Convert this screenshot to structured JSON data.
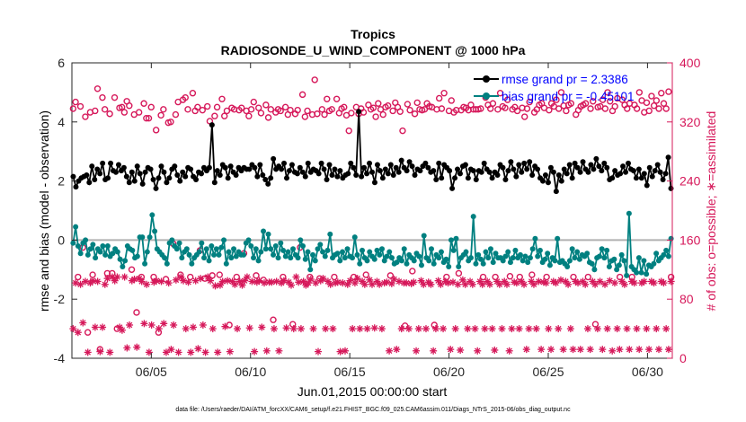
{
  "chart_data": {
    "type": "line",
    "title": "Tropics",
    "subtitle": "RADIOSONDE_U_WIND_COMPONENT @ 1000 hPa",
    "xlabel": "Jun.01,2015 00:00:00 start",
    "ylabel_left": "rmse and bias (model - observation)",
    "ylabel_right": "# of obs: o=possible; ∗=assimilated",
    "footer": "data file: /Users/raeder/DAI/ATM_forcXX/CAM6_setup/f.e21.FHIST_BGC.f09_025.CAM6assim.011/Diags_NTrS_2015-06/obs_diag_output.nc",
    "xlim": [
      1.0,
      31.25
    ],
    "ylim_left": [
      -4,
      6
    ],
    "ylim_right": [
      0,
      400
    ],
    "x_ticks": [
      5,
      10,
      15,
      20,
      25,
      30
    ],
    "x_tick_labels": [
      "06/05",
      "06/10",
      "06/15",
      "06/20",
      "06/25",
      "06/30"
    ],
    "y_left_ticks": [
      -4,
      -2,
      0,
      2,
      4,
      6
    ],
    "y_left_tick_labels": [
      "-4",
      "-2",
      "0",
      "2",
      "4",
      "6"
    ],
    "y_right_ticks": [
      0,
      80,
      160,
      240,
      320,
      400
    ],
    "y_right_tick_labels": [
      "0",
      "80",
      "160",
      "240",
      "320",
      "400"
    ],
    "legend": [
      {
        "label": "rmse grand pr = 2.3386",
        "color": "#000000"
      },
      {
        "label": "bias grand pr = -0.45101",
        "color": "#008080"
      }
    ],
    "colors": {
      "rmse": "#000000",
      "bias": "#008080",
      "obs": "#d6185a",
      "zero_line": "#b0b0b0",
      "right_axis": "#d6185a"
    },
    "series": [
      {
        "name": "rmse",
        "axis": "left",
        "style": "line-dots",
        "values": [
          2.15,
          1.8,
          2.0,
          2.1,
          2.15,
          2.2,
          1.95,
          2.5,
          2.05,
          2.4,
          2.25,
          2.6,
          2.05,
          2.1,
          2.6,
          2.35,
          2.3,
          2.55,
          2.35,
          2.45,
          2.15,
          1.95,
          2.3,
          2.0,
          2.5,
          2.25,
          1.9,
          2.3,
          2.45,
          2.4,
          2.05,
          1.75,
          2.1,
          2.5,
          2.3,
          1.95,
          2.1,
          2.4,
          2.5,
          2.2,
          2.0,
          2.3,
          2.15,
          2.45,
          2.4,
          2.15,
          2.05,
          2.3,
          2.25,
          2.45,
          2.35,
          2.45,
          3.9,
          1.95,
          2.35,
          2.2,
          2.55,
          2.45,
          2.1,
          2.5,
          2.3,
          2.2,
          2.45,
          2.35,
          2.45,
          2.4,
          2.4,
          2.55,
          2.45,
          2.15,
          2.55,
          2.2,
          2.05,
          1.9,
          2.1,
          2.75,
          2.4,
          2.5,
          2.4,
          2.6,
          2.1,
          2.35,
          2.55,
          2.3,
          2.25,
          2.45,
          2.3,
          2.15,
          2.6,
          2.3,
          2.4,
          2.35,
          2.25,
          2.6,
          2.4,
          2.05,
          2.55,
          2.2,
          2.4,
          2.15,
          2.35,
          2.1,
          2.2,
          2.25,
          2.6,
          2.45,
          2.2,
          4.35,
          2.15,
          2.45,
          2.25,
          2.6,
          2.3,
          1.95,
          2.55,
          2.35,
          2.1,
          2.4,
          2.25,
          2.55,
          2.2,
          2.45,
          2.3,
          2.7,
          2.45,
          2.35,
          2.65,
          2.5,
          2.2,
          2.4,
          2.35,
          2.5,
          2.6,
          2.45,
          2.3,
          2.35,
          2.05,
          2.6,
          2.1,
          2.55,
          2.45,
          2.35,
          1.75,
          2.1,
          2.4,
          2.25,
          2.5,
          2.55,
          2.1,
          2.4,
          2.35,
          2.05,
          2.35,
          2.3,
          2.6,
          2.4,
          2.3,
          2.1,
          2.3,
          2.2,
          2.55,
          2.45,
          2.05,
          2.35,
          2.65,
          2.4,
          2.15,
          2.55,
          2.3,
          2.6,
          2.4,
          2.65,
          2.2,
          2.5,
          2.4,
          2.1,
          2.0,
          2.2,
          1.95,
          2.45,
          2.3,
          1.65,
          2.2,
          2.0,
          2.4,
          2.25,
          2.55,
          2.1,
          2.6,
          2.45,
          2.3,
          2.65,
          2.4,
          2.3,
          2.55,
          2.4,
          2.75,
          2.5,
          2.35,
          2.6,
          2.45,
          2.05,
          2.1,
          2.35,
          2.2,
          2.25,
          2.5,
          2.3,
          2.6,
          2.4,
          2.35,
          2.1,
          2.4,
          2.1,
          2.25,
          1.85,
          2.45,
          2.15,
          2.35,
          2.55,
          2.3,
          2.05,
          2.25,
          2.8,
          1.75
        ]
      },
      {
        "name": "bias",
        "axis": "left",
        "style": "line-dots",
        "values": [
          -0.1,
          0.45,
          -0.2,
          -0.45,
          -0.1,
          0.0,
          -0.5,
          -0.3,
          -0.15,
          -0.6,
          -0.3,
          -0.4,
          -0.2,
          -0.5,
          -0.2,
          -0.55,
          -0.45,
          -0.3,
          -0.4,
          -0.65,
          -0.9,
          -0.7,
          -0.2,
          -0.3,
          -0.35,
          -0.6,
          -0.55,
          0.1,
          0.1,
          -0.8,
          -0.4,
          0.1,
          0.85,
          0.3,
          -0.3,
          -0.4,
          -0.5,
          -0.6,
          -0.8,
          -0.1,
          0.0,
          -0.2,
          -0.3,
          -0.1,
          -0.6,
          -0.4,
          -0.3,
          -0.5,
          -0.8,
          -0.6,
          -0.5,
          -0.4,
          -0.1,
          -0.6,
          -0.3,
          -0.7,
          -0.2,
          -0.5,
          -0.3,
          -0.5,
          -0.25,
          0.0,
          -0.8,
          -0.4,
          -0.6,
          -0.3,
          -0.55,
          -0.4,
          -0.5,
          -0.5,
          -0.1,
          0.0,
          -0.2,
          -0.6,
          -0.3,
          -0.7,
          -0.4,
          0.3,
          -0.3,
          0.2,
          -0.3,
          -0.5,
          -0.2,
          -0.6,
          -0.1,
          -0.35,
          -0.55,
          -0.4,
          -0.6,
          -0.3,
          -0.5,
          -0.6,
          0.0,
          -0.2,
          -0.65,
          -0.4,
          -1.0,
          -0.5,
          -0.7,
          -0.3,
          -0.15,
          -0.4,
          -0.55,
          -0.35,
          0.2,
          -0.6,
          -0.5,
          -0.45,
          -0.7,
          -0.4,
          -0.6,
          -0.3,
          -0.55,
          -0.6,
          0.1,
          -0.5,
          -0.8,
          -0.35,
          -0.6,
          -0.7,
          -0.4,
          -0.55,
          -0.65,
          -0.35,
          -0.5,
          -0.3,
          -0.7,
          -0.55,
          -0.4,
          -0.6,
          -0.8,
          -0.75,
          -0.6,
          -0.7,
          -0.3,
          -0.8,
          -0.5,
          -0.6,
          -0.7,
          -0.45,
          -0.55,
          -0.85,
          0.15,
          -0.6,
          -0.7,
          -0.3,
          -0.8,
          -0.5,
          -0.6,
          -0.4,
          -0.75,
          -0.65,
          -0.9,
          0.0,
          -0.35,
          0.05,
          -0.9,
          -0.6,
          -0.5,
          -0.4,
          -0.7,
          -0.6,
          0.8,
          -0.8,
          -0.5,
          -0.65,
          -0.8,
          -0.4,
          -0.6,
          -0.3,
          -0.75,
          -0.45,
          -0.6,
          -0.6,
          -0.7,
          -0.55,
          -0.4,
          -0.75,
          -0.6,
          -0.35,
          -0.6,
          -0.5,
          -0.7,
          -0.55,
          -0.75,
          -0.6,
          -0.3,
          0.05,
          -0.55,
          -0.35,
          -0.75,
          -0.65,
          -0.45,
          -0.85,
          -0.6,
          -0.7,
          0.05,
          -0.75,
          -0.7,
          -0.8,
          -0.9,
          -0.7,
          -0.3,
          -0.6,
          -0.4,
          -0.65,
          -0.5,
          -0.55,
          -0.45,
          -0.75,
          -0.8,
          -1.0,
          -0.6,
          -0.55,
          -0.3,
          -0.6,
          -0.35,
          -0.9,
          -0.7,
          -0.65,
          -1.0,
          -0.85,
          -0.5,
          -0.7,
          -1.2,
          0.9,
          -0.9,
          -1.0,
          -1.1,
          -0.6,
          -1.1,
          -0.7,
          -1.15,
          -0.85,
          -0.9,
          -0.8,
          -0.45,
          -0.7,
          -0.6,
          -0.5,
          -0.35,
          -0.55,
          0.05
        ]
      },
      {
        "name": "possible",
        "axis": "right",
        "style": "open-circle",
        "values": [
          338,
          347,
          110,
          341,
          150,
          327,
          35,
          333,
          113,
          335,
          365,
          12,
          353,
          337,
          115,
          331,
          115,
          353,
          40,
          339,
          340,
          333,
          348,
          342,
          120,
          330,
          62,
          333,
          110,
          345,
          325,
          325,
          340,
          110,
          309,
          35,
          329,
          337,
          107,
          319,
          320,
          155,
          330,
          347,
          113,
          350,
          353,
          337,
          110,
          359,
          335,
          340,
          146,
          336,
          108,
          341,
          321,
          112,
          328,
          340,
          113,
          351,
          328,
          335,
          45,
          339,
          337,
          110,
          336,
          339,
          142,
          335,
          328,
          337,
          347,
          112,
          339,
          332,
          106,
          343,
          326,
          337,
          52,
          333,
          337,
          335,
          110,
          340,
          330,
          336,
          46,
          331,
          336,
          150,
          357,
          327,
          335,
          110,
          330,
          377,
          331,
          108,
          337,
          330,
          351,
          335,
          337,
          110,
          351,
          332,
          338,
          340,
          329,
          308,
          332,
          110,
          340,
          331,
          338,
          333,
          113,
          343,
          337,
          339,
          327,
          345,
          337,
          330,
          340,
          342,
          112,
          335,
          346,
          340,
          334,
          308,
          44,
          344,
          336,
          118,
          331,
          346,
          337,
          336,
          337,
          345,
          341,
          340,
          45,
          337,
          352,
          338,
          359,
          110,
          335,
          349,
          333,
          336,
          115,
          336,
          340,
          339,
          336,
          343,
          337,
          337,
          337,
          338,
          110,
          353,
          343,
          338,
          345,
          110,
          337,
          359,
          341,
          339,
          350,
          111,
          337,
          340,
          335,
          110,
          339,
          327,
          338,
          347,
          113,
          333,
          337,
          343,
          345,
          339,
          110,
          336,
          345,
          341,
          350,
          338,
          360,
          342,
          335,
          343,
          345,
          110,
          330,
          336,
          341,
          343,
          345,
          110,
          338,
          348,
          46,
          340,
          341,
          350,
          338,
          360,
          348,
          335,
          341,
          352,
          110,
          350,
          343,
          338,
          345,
          110,
          343,
          338,
          360,
          349,
          333,
          346,
          335,
          355,
          342,
          349,
          338,
          359,
          345,
          338,
          361,
          110
        ]
      },
      {
        "name": "assimilated",
        "axis": "right",
        "style": "asterisk",
        "values": [
          40,
          102,
          35,
          100,
          48,
          104,
          8,
          102,
          105,
          42,
          104,
          9,
          42,
          100,
          108,
          8,
          110,
          105,
          110,
          42,
          38,
          110,
          14,
          45,
          105,
          107,
          15,
          108,
          104,
          47,
          100,
          8,
          45,
          103,
          105,
          40,
          104,
          47,
          8,
          102,
          12,
          45,
          106,
          8,
          110,
          105,
          40,
          103,
          8,
          42,
          105,
          13,
          108,
          45,
          8,
          110,
          105,
          40,
          98,
          8,
          99,
          104,
          43,
          105,
          9,
          104,
          100,
          40,
          104,
          99,
          105,
          110,
          41,
          104,
          9,
          103,
          105,
          42,
          102,
          10,
          103,
          103,
          40,
          104,
          10,
          102,
          105,
          41,
          103,
          99,
          40,
          110,
          103,
          40,
          104,
          99,
          102,
          107,
          40,
          102,
          9,
          105,
          108,
          40,
          104,
          100,
          40,
          102,
          103,
          9,
          102,
          10,
          100,
          105,
          40,
          102,
          108,
          40,
          104,
          100,
          40,
          106,
          100,
          41,
          104,
          100,
          40,
          102,
          103,
          10,
          101,
          107,
          12,
          104,
          40,
          102,
          102,
          40,
          101,
          103,
          10,
          40,
          105,
          100,
          40,
          103,
          100,
          10,
          40,
          105,
          100,
          40,
          104,
          102,
          12,
          103,
          40,
          100,
          11,
          106,
          100,
          40,
          104,
          100,
          40,
          10,
          104,
          100,
          40,
          104,
          100,
          40,
          11,
          104,
          100,
          40,
          104,
          100,
          10,
          40,
          103,
          102,
          40,
          104,
          100,
          12,
          40,
          104,
          100,
          40,
          104,
          12,
          103,
          102,
          40,
          12,
          104,
          102,
          40,
          106,
          12,
          104,
          100,
          40,
          12,
          104,
          102,
          12,
          104,
          100,
          40,
          12,
          104,
          100,
          40,
          104,
          12,
          100,
          40,
          105,
          10,
          102,
          40,
          12,
          104,
          100,
          40,
          12,
          104,
          102,
          40,
          12,
          102,
          104,
          40,
          12,
          104,
          102,
          40,
          12,
          104,
          102,
          40,
          12,
          104
        ]
      }
    ]
  }
}
